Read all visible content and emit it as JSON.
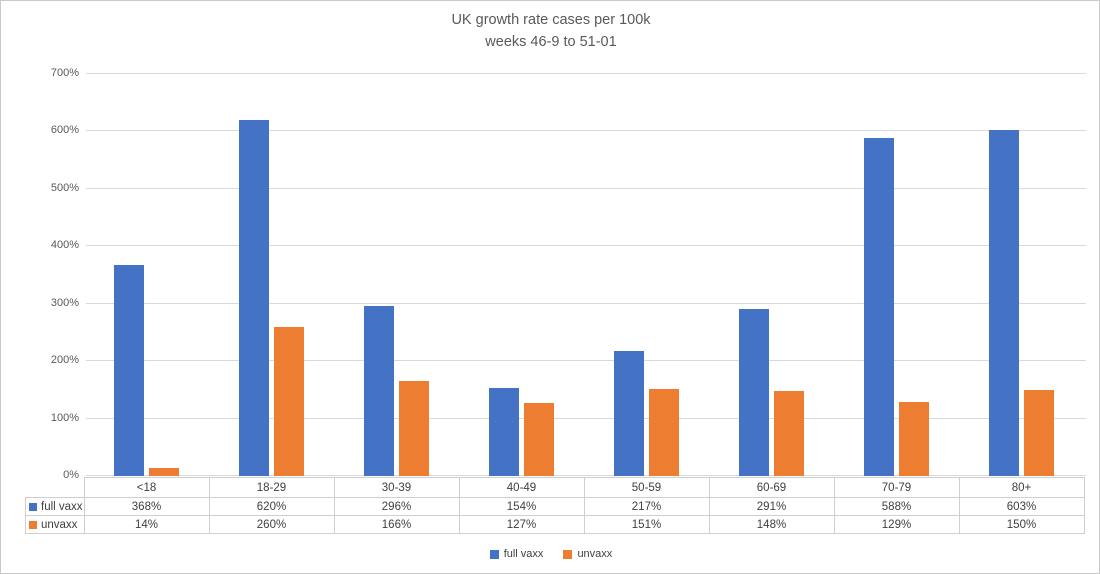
{
  "title": {
    "line1": "UK growth rate cases per 100k",
    "line2": "weeks 46-9 to 51-01"
  },
  "chart_data": {
    "type": "bar",
    "title": "UK growth rate cases per 100k",
    "subtitle": "weeks 46-9 to 51-01",
    "categories": [
      "<18",
      "18-29",
      "30-39",
      "40-49",
      "50-59",
      "60-69",
      "70-79",
      "80+"
    ],
    "series": [
      {
        "name": "full vaxx",
        "color": "#4472C4",
        "values": [
          368,
          620,
          296,
          154,
          217,
          291,
          588,
          603
        ]
      },
      {
        "name": "unvaxx",
        "color": "#ED7D31",
        "values": [
          14,
          260,
          166,
          127,
          151,
          148,
          129,
          150
        ]
      }
    ],
    "value_suffix": "%",
    "xlabel": "",
    "ylabel": "",
    "ylim": [
      0,
      700
    ],
    "yticks": [
      "0%",
      "100%",
      "200%",
      "300%",
      "400%",
      "500%",
      "600%",
      "700%"
    ],
    "grid": true,
    "legend_position": "bottom",
    "data_table_shown": true
  },
  "colors": {
    "gridline": "#d9d9d9",
    "table_border": "#d0cece",
    "axis_text": "#595959",
    "table_text": "#404040"
  }
}
